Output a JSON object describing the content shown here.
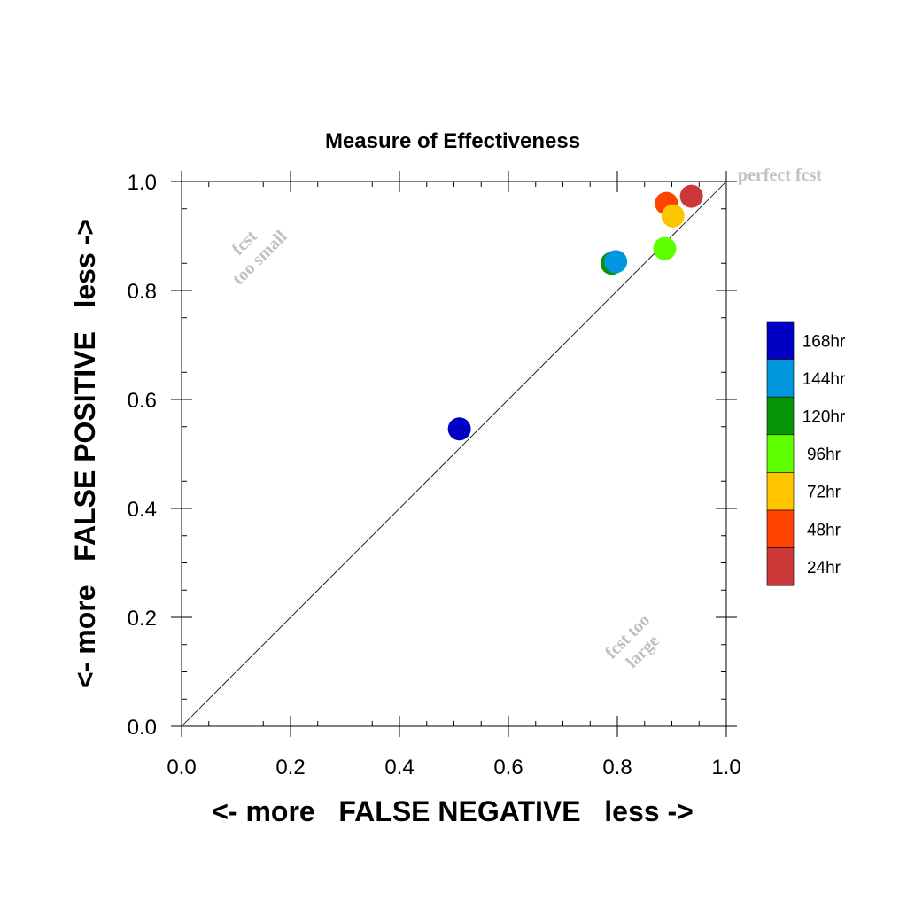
{
  "chart_data": {
    "type": "scatter",
    "title": "Measure of Effectiveness",
    "xlabel": "<- more   FALSE NEGATIVE   less ->",
    "ylabel": "<- more   FALSE POSITIVE   less ->",
    "xlim": [
      0.0,
      1.0
    ],
    "ylim": [
      0.0,
      1.0
    ],
    "x_ticks": [
      "0.0",
      "0.2",
      "0.4",
      "0.6",
      "0.8",
      "1.0"
    ],
    "y_ticks": [
      "0.0",
      "0.2",
      "0.4",
      "0.6",
      "0.8",
      "1.0"
    ],
    "annotations": {
      "perfect": "perfect fcst",
      "too_small_line1": "fcst",
      "too_small_line2": "too small",
      "too_large_line1": "fcst too",
      "too_large_line2": "large"
    },
    "reference_line": "diagonal y = x",
    "grid": false,
    "legend_position": "right",
    "series": [
      {
        "name": "168hr",
        "color": "#0000c4",
        "x": 0.51,
        "y": 0.546
      },
      {
        "name": "144hr",
        "color": "#0097de",
        "x": 0.797,
        "y": 0.853
      },
      {
        "name": "120hr",
        "color": "#069606",
        "x": 0.79,
        "y": 0.85
      },
      {
        "name": "96hr",
        "color": "#5eff00",
        "x": 0.887,
        "y": 0.877
      },
      {
        "name": "72hr",
        "color": "#ffc400",
        "x": 0.902,
        "y": 0.937
      },
      {
        "name": "48hr",
        "color": "#ff4300",
        "x": 0.89,
        "y": 0.96
      },
      {
        "name": "24hr",
        "color": "#cc3838",
        "x": 0.936,
        "y": 0.973
      }
    ]
  }
}
